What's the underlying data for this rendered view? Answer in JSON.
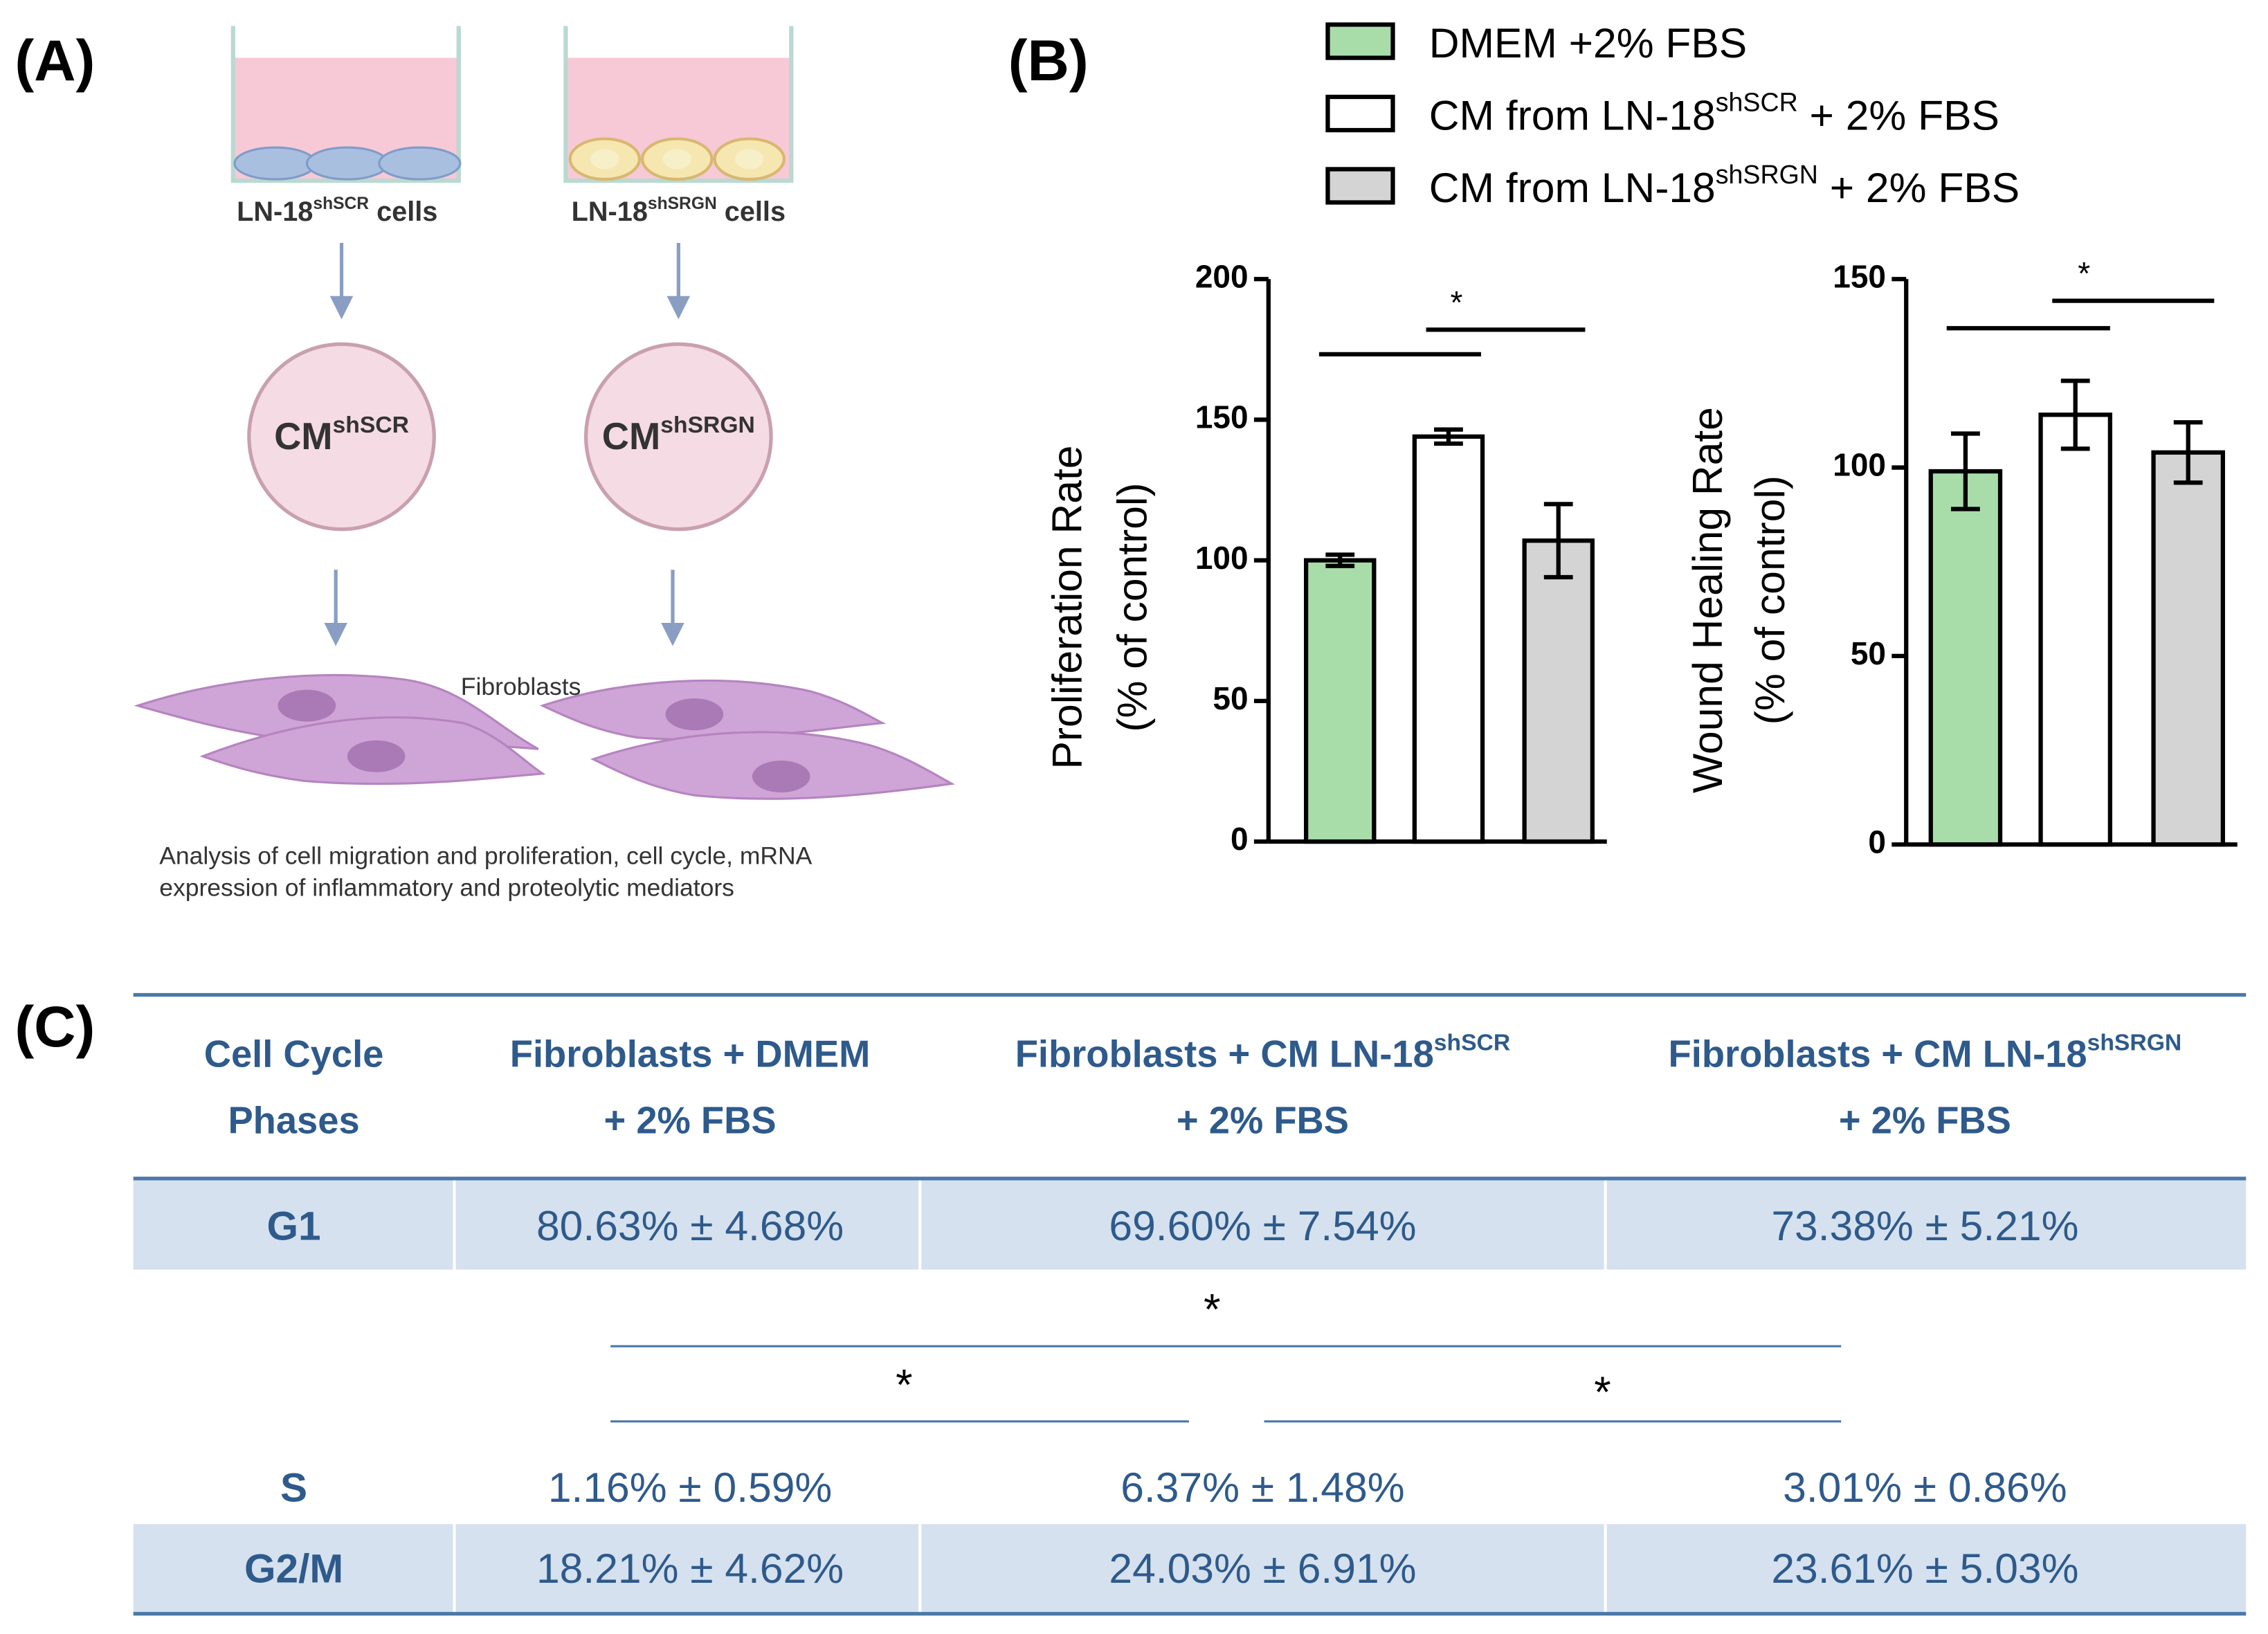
{
  "panel_labels": [
    "(A)",
    "(B)",
    "(C)"
  ],
  "schematic": {
    "wells": [
      [
        "LN-18",
        "shSCR",
        " cells"
      ],
      [
        "LN-18",
        "shSRGN",
        " cells"
      ]
    ],
    "media": [
      [
        "CM",
        "shSCR"
      ],
      [
        "CM",
        "shSRGN"
      ]
    ],
    "target": "Fibroblasts",
    "caption": [
      "Analysis of cell migration and proliferation, cell cycle, mRNA",
      "expression of inflammatory and proteolytic mediators"
    ]
  },
  "chart_data": [
    {
      "type": "bar",
      "ylabel": [
        "Proliferation Rate",
        "(% of control)"
      ],
      "ylim": [
        0,
        200
      ],
      "yticks": [
        0,
        50,
        100,
        150,
        200
      ],
      "annotations": [
        "*"
      ],
      "series": [
        {
          "name": [
            "DMEM +2% FBS"
          ],
          "color": "#a8ddaa",
          "values": [
            100
          ],
          "errors": [
            2
          ]
        },
        {
          "name": [
            "CM from LN-18",
            "shSCR",
            " + 2% FBS"
          ],
          "color": "#ffffff",
          "values": [
            144
          ],
          "errors": [
            2.5
          ]
        },
        {
          "name": [
            "CM from LN-18",
            "shSRGN",
            " + 2% FBS"
          ],
          "color": "#d4d4d4",
          "values": [
            107
          ],
          "errors": [
            13
          ]
        }
      ]
    },
    {
      "type": "bar",
      "ylabel": [
        "Wound Healing Rate",
        "(% of control)"
      ],
      "ylim": [
        0,
        150
      ],
      "yticks": [
        0,
        50,
        100,
        150
      ],
      "annotations": [
        "*"
      ],
      "series": [
        {
          "color": "#a8ddaa",
          "values": [
            99
          ],
          "errors": [
            10
          ]
        },
        {
          "color": "#ffffff",
          "values": [
            114
          ],
          "errors": [
            9
          ]
        },
        {
          "color": "#d4d4d4",
          "values": [
            104
          ],
          "errors": [
            8
          ]
        }
      ]
    }
  ],
  "table": {
    "header": [
      [
        [
          "Cell Cycle"
        ],
        [
          "Phases"
        ]
      ],
      [
        [
          "Fibroblasts + DMEM"
        ],
        [
          "+ 2% FBS"
        ]
      ],
      [
        [
          "Fibroblasts + CM LN-18",
          "shSCR"
        ],
        [
          "+ 2% FBS"
        ]
      ],
      [
        [
          "Fibroblasts + CM LN-18",
          "shSRGN"
        ],
        [
          "+ 2% FBS"
        ]
      ]
    ],
    "rows": [
      [
        "G1",
        "80.63% ± 4.68%",
        "69.60% ± 7.54%",
        "73.38% ± 5.21%"
      ],
      [
        "S",
        "1.16% ± 0.59%",
        "6.37% ± 1.48%",
        "3.01% ± 0.86%"
      ],
      [
        "G2/M",
        "18.21% ± 4.62%",
        "24.03% ± 6.91%",
        "23.61% ± 5.03%"
      ]
    ],
    "significance": [
      "*",
      "*",
      "*"
    ]
  }
}
